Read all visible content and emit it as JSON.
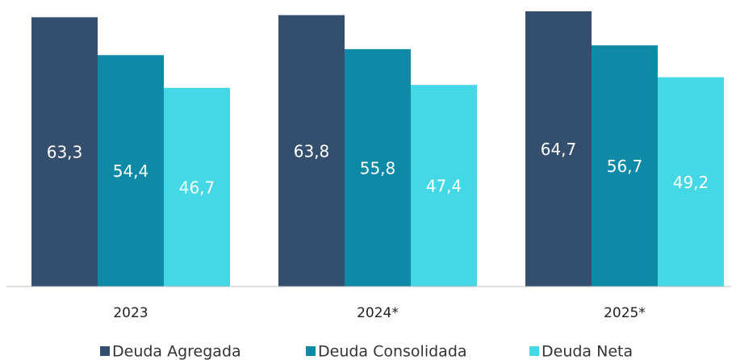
{
  "chart_data": {
    "type": "bar",
    "categories": [
      "2023",
      "2024*",
      "2025*"
    ],
    "series": [
      {
        "name": "Deuda Agregada",
        "color": "#344e6e",
        "values": [
          63.3,
          63.8,
          64.7
        ],
        "value_labels": [
          "63,3",
          "63,8",
          "64,7"
        ]
      },
      {
        "name": "Deuda Consolidada",
        "color": "#0e8aa6",
        "values": [
          54.4,
          55.8,
          56.7
        ],
        "value_labels": [
          "54,4",
          "55,8",
          "56,7"
        ]
      },
      {
        "name": "Deuda Neta",
        "color": "#44d7e6",
        "values": [
          46.7,
          47.4,
          49.2
        ],
        "value_labels": [
          "46,7",
          "47,4",
          "49,2"
        ]
      }
    ],
    "legend": "bottom"
  }
}
